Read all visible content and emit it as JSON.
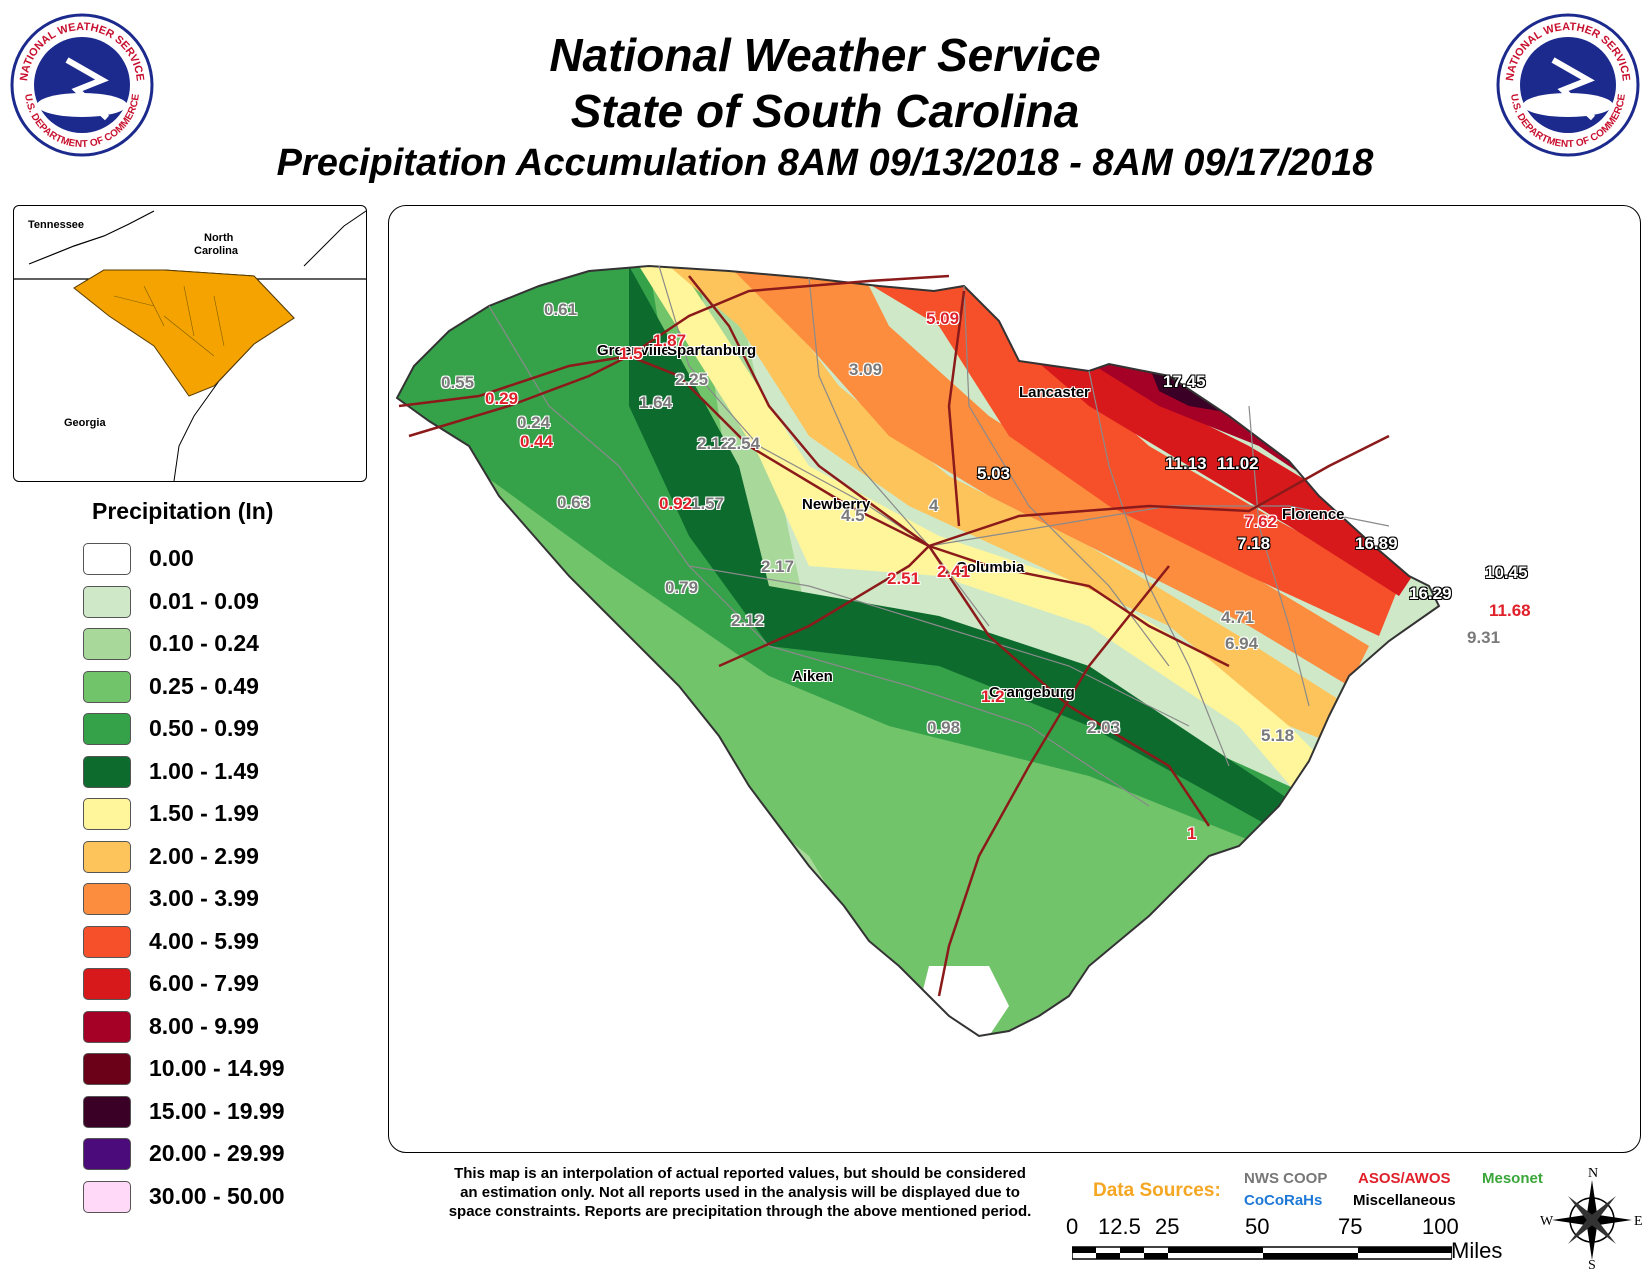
{
  "header": {
    "line1": "National Weather Service",
    "line2": "State of South Carolina",
    "line3": "Precipitation Accumulation 8AM 09/13/2018 - 8AM 09/17/2018"
  },
  "logo": {
    "top_text": "NATIONAL WEATHER SERVICE",
    "bottom_text": "U.S. DEPARTMENT OF COMMERCE"
  },
  "inset": {
    "labels": [
      "Tennessee",
      "North",
      "Carolina",
      "Georgia"
    ]
  },
  "legend": {
    "title": "Precipitation (In)",
    "items": [
      {
        "label": "0.00",
        "color": "#ffffff"
      },
      {
        "label": "0.01 - 0.09",
        "color": "#cfe9c8"
      },
      {
        "label": "0.10 - 0.24",
        "color": "#a8d99b"
      },
      {
        "label": "0.25 - 0.49",
        "color": "#72c46b"
      },
      {
        "label": "0.50 - 0.99",
        "color": "#35a24a"
      },
      {
        "label": "1.00 - 1.49",
        "color": "#0d6b2e"
      },
      {
        "label": "1.50 - 1.99",
        "color": "#fff59a"
      },
      {
        "label": "2.00 - 2.99",
        "color": "#fdc45c"
      },
      {
        "label": "3.00 - 3.99",
        "color": "#fc8d3f"
      },
      {
        "label": "4.00 - 5.99",
        "color": "#f6502a"
      },
      {
        "label": "6.00 - 7.99",
        "color": "#d7191c"
      },
      {
        "label": "8.00 - 9.99",
        "color": "#a50026"
      },
      {
        "label": "10.00 - 14.99",
        "color": "#6b0019"
      },
      {
        "label": "15.00 - 19.99",
        "color": "#3a0026"
      },
      {
        "label": "20.00 - 29.99",
        "color": "#4b0b7a"
      },
      {
        "label": "30.00 - 50.00",
        "color": "#ffd9f7"
      }
    ]
  },
  "cities": [
    "Greenville",
    "Spartanburg",
    "Lancaster",
    "Newberry",
    "Columbia",
    "Florence",
    "Aiken",
    "Orangeburg"
  ],
  "values": {
    "gray": [
      "0.61",
      "0.55",
      "0.24",
      "0.63",
      "2.25",
      "1.64",
      "2.12",
      "2.54",
      "3.09",
      "1.57",
      "4.5",
      "4",
      "2.17",
      "0.79",
      "2.12",
      "0.98",
      "2.03",
      "4.71",
      "6.94",
      "5.18",
      "9.31"
    ],
    "red": [
      "5.09",
      "1.5",
      "1.87",
      "0.29",
      "0.44",
      "0.92",
      "2.51",
      "2.41",
      "1.2",
      "7.62",
      "11.68",
      "1"
    ],
    "white": [
      "17.45",
      "5.03",
      "11.13",
      "11.02",
      "7.18",
      "16.89",
      "16.29",
      "10.45"
    ]
  },
  "disclaimer": [
    "This map is an interpolation of actual reported values, but should be considered",
    "an estimation only. Not all reports used in the analysis will be displayed due to",
    "space constraints. Reports are precipitation through the above mentioned period."
  ],
  "data_sources": {
    "title": "Data Sources:",
    "items": [
      {
        "label": "NWS COOP",
        "color": "#777777"
      },
      {
        "label": "ASOS/AWOS",
        "color": "#e0202a"
      },
      {
        "label": "Mesonet",
        "color": "#3aa63a"
      },
      {
        "label": "CoCoRaHs",
        "color": "#1e78d6"
      },
      {
        "label": "Miscellaneous",
        "color": "#000000"
      }
    ]
  },
  "scale": {
    "ticks": [
      "0",
      "12.5",
      "25",
      "50",
      "75",
      "100"
    ],
    "unit": "Miles"
  },
  "compass": {
    "n": "N",
    "s": "S",
    "e": "E",
    "w": "W"
  }
}
